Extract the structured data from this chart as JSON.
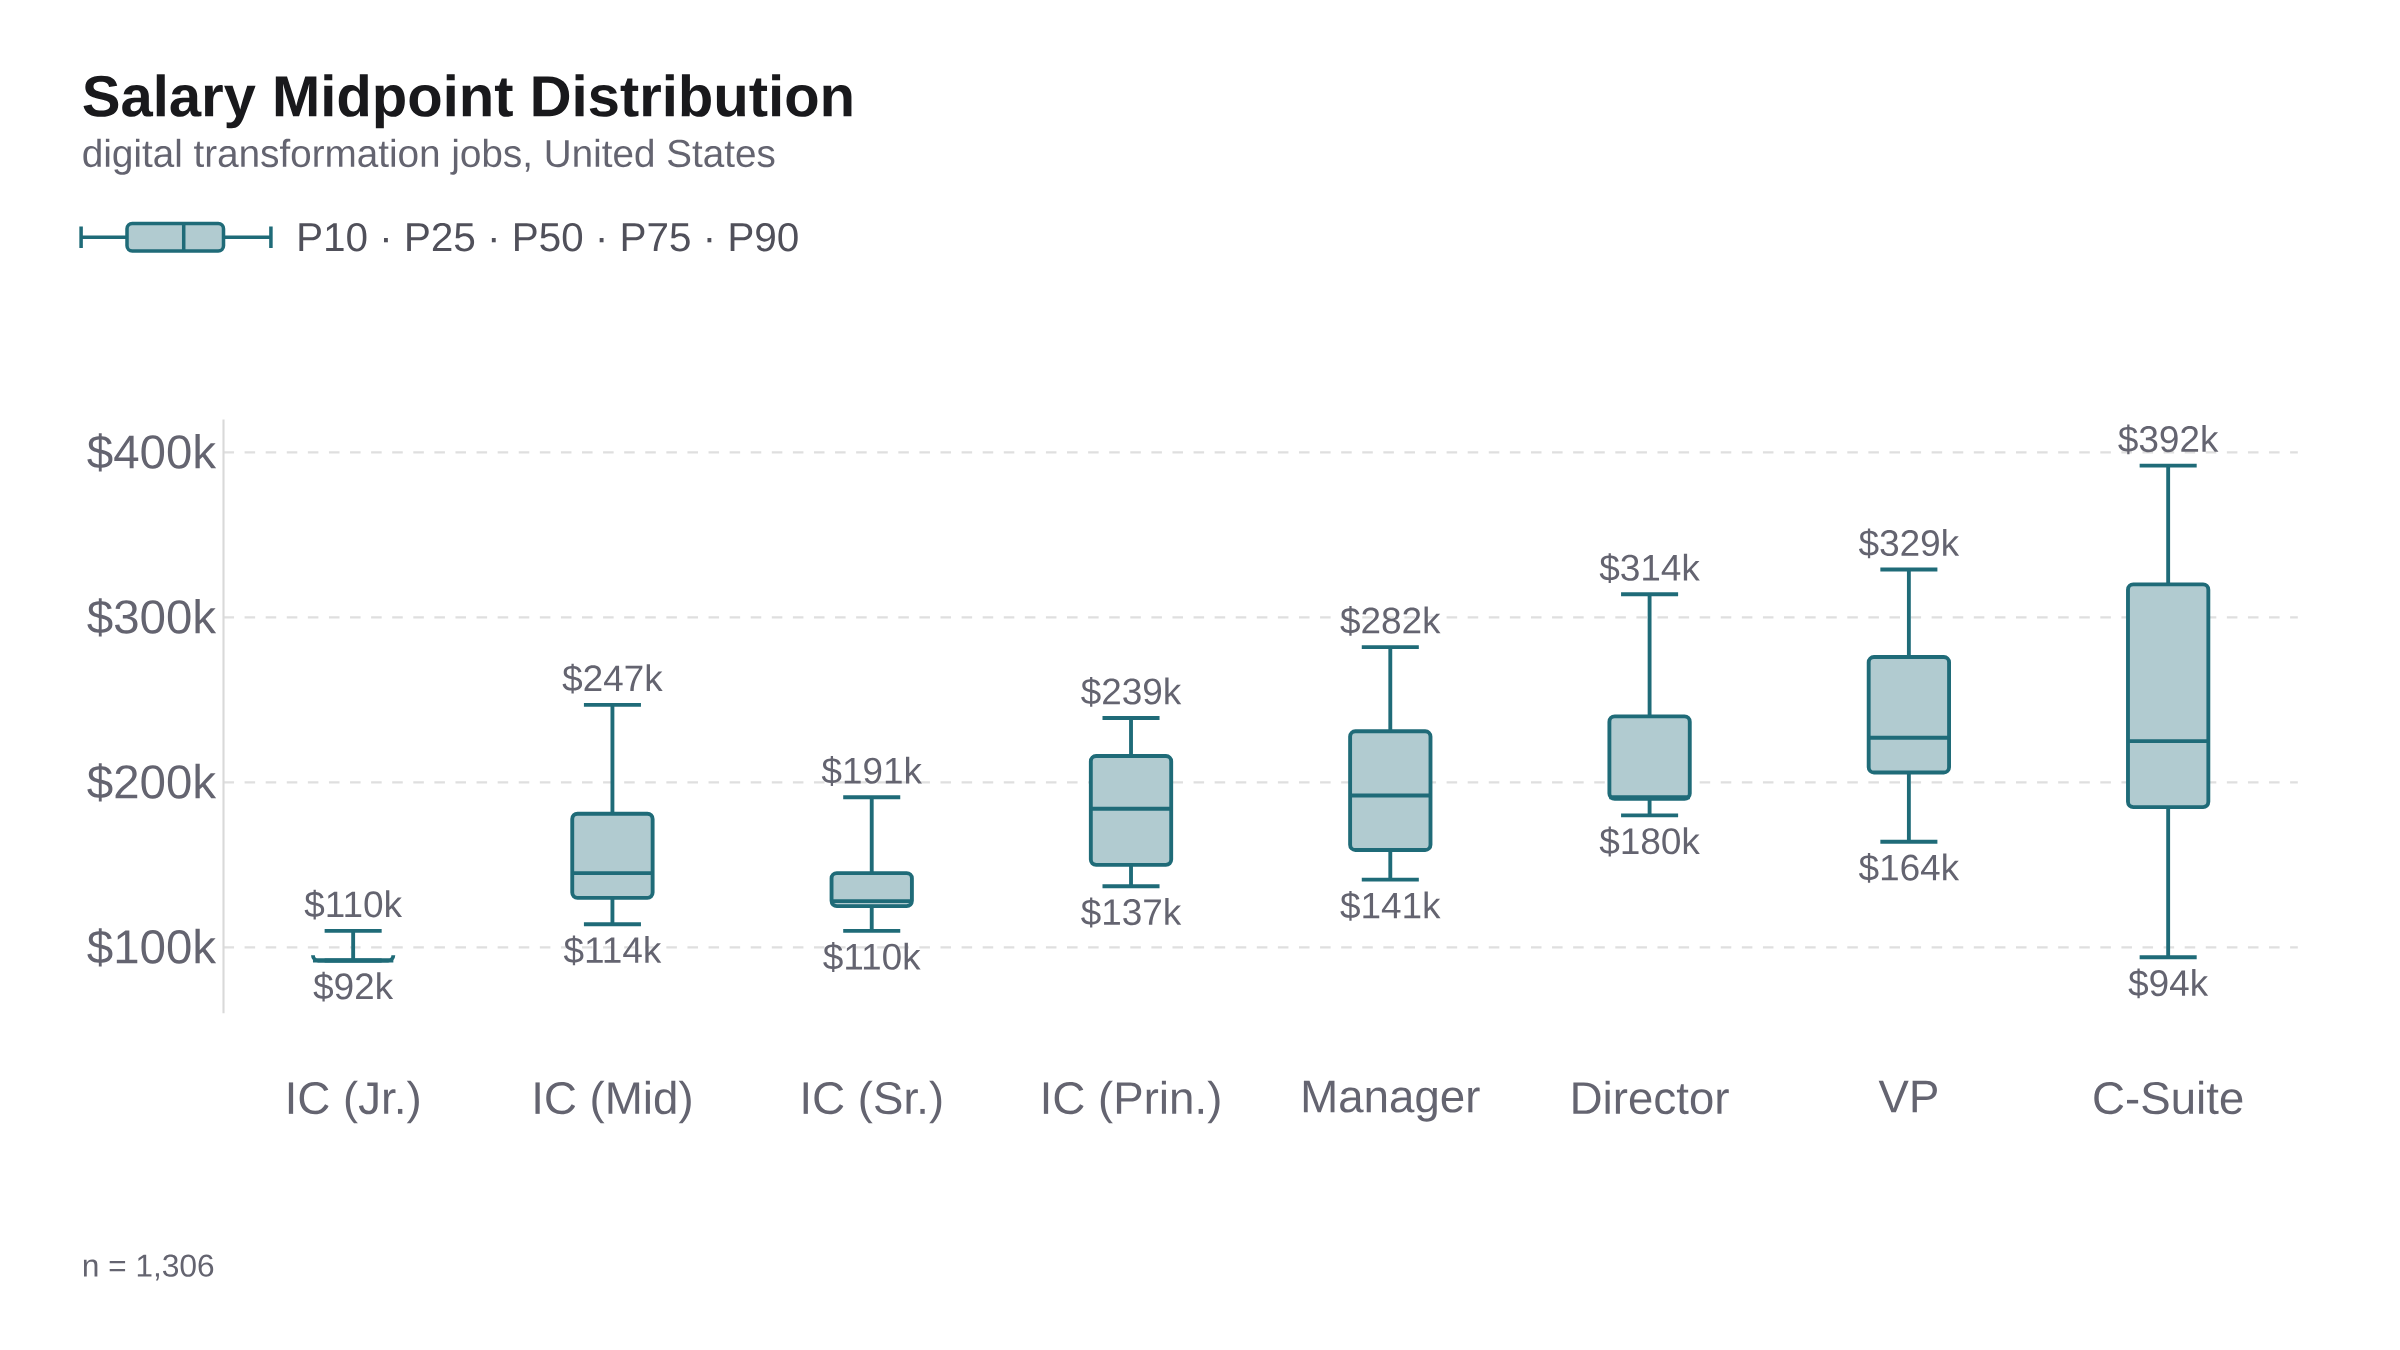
{
  "chart_data": {
    "type": "box",
    "title": "Salary Midpoint Distribution",
    "subtitle": "digital transformation jobs, United States",
    "categories": [
      "IC (Jr.)",
      "IC (Mid)",
      "IC (Sr.)",
      "IC (Prin.)",
      "Manager",
      "Director",
      "VP",
      "C-Suite"
    ],
    "series": [
      {
        "name": "P10 · P25 · P50 · P75 · P90",
        "color": "#1f6b78",
        "boxes": [
          {
            "low": 92,
            "q1": 92,
            "median": 92,
            "q3": 92,
            "high": 110
          },
          {
            "low": 114,
            "q1": 130,
            "median": 145,
            "q3": 181,
            "high": 247
          },
          {
            "low": 110,
            "q1": 125,
            "median": 128,
            "q3": 145,
            "high": 191
          },
          {
            "low": 137,
            "q1": 150,
            "median": 184,
            "q3": 216,
            "high": 239
          },
          {
            "low": 141,
            "q1": 159,
            "median": 192,
            "q3": 231,
            "high": 282
          },
          {
            "low": 180,
            "q1": 190,
            "median": 191,
            "q3": 240,
            "high": 314
          },
          {
            "low": 164,
            "q1": 206,
            "median": 227,
            "q3": 276,
            "high": 329
          },
          {
            "low": 94,
            "q1": 185,
            "median": 225,
            "q3": 320,
            "high": 392
          }
        ]
      }
    ],
    "yticks": [
      {
        "value": 100,
        "label": "$100k"
      },
      {
        "value": 200,
        "label": "$200k"
      },
      {
        "value": 300,
        "label": "$300k"
      },
      {
        "value": 400,
        "label": "$400k"
      }
    ],
    "ylim": [
      60,
      420
    ],
    "grid": "y",
    "legend": "top left",
    "annotations": [
      {
        "text": "$110k",
        "x": "IC (Jr.)",
        "y": 110
      },
      {
        "text": "$92k",
        "x": "IC (Jr.)",
        "y": 92
      },
      {
        "text": "$247k",
        "x": "IC (Mid)",
        "y": 247
      },
      {
        "text": "$114k",
        "x": "IC (Mid)",
        "y": 114
      },
      {
        "text": "$191k",
        "x": "IC (Sr.)",
        "y": 191
      },
      {
        "text": "$110k",
        "x": "IC (Sr.)",
        "y": 110
      },
      {
        "text": "$239k",
        "x": "IC (Prin.)",
        "y": 239
      },
      {
        "text": "$137k",
        "x": "IC (Prin.)",
        "y": 137
      },
      {
        "text": "$282k",
        "x": "Manager",
        "y": 282
      },
      {
        "text": "$141k",
        "x": "Manager",
        "y": 141
      },
      {
        "text": "$314k",
        "x": "Director",
        "y": 314
      },
      {
        "text": "$180k",
        "x": "Director",
        "y": 180
      },
      {
        "text": "$329k",
        "x": "VP",
        "y": 329
      },
      {
        "text": "$164k",
        "x": "VP",
        "y": 164
      },
      {
        "text": "$392k",
        "x": "C-Suite",
        "y": 392
      },
      {
        "text": "$94k",
        "x": "C-Suite",
        "y": 94
      },
      "n = 1,306"
    ]
  }
}
